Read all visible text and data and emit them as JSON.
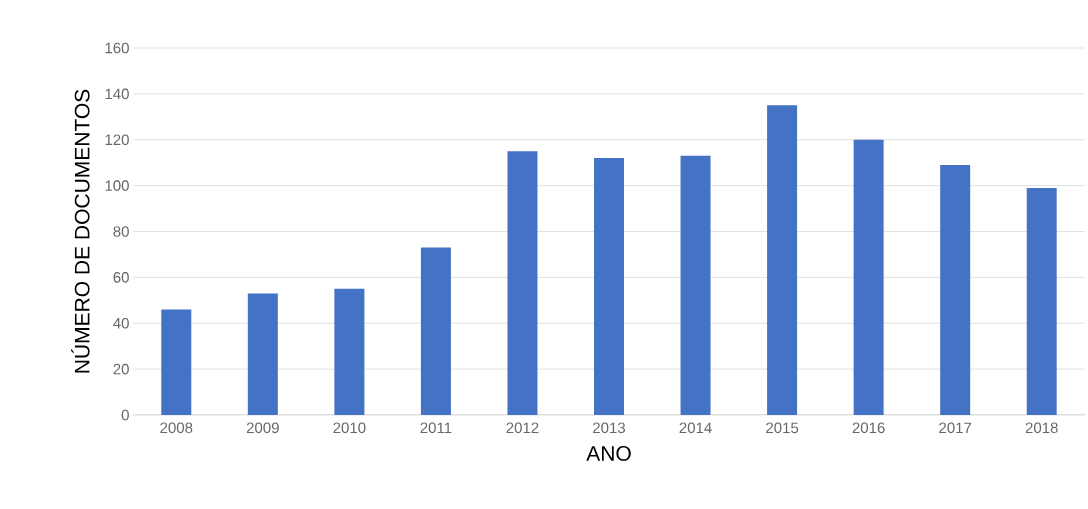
{
  "chart_data": {
    "type": "bar",
    "xlabel": "ANO",
    "ylabel": "NÚMERO DE DOCUMENTOS",
    "categories": [
      "2008",
      "2009",
      "2010",
      "2011",
      "2012",
      "2013",
      "2014",
      "2015",
      "2016",
      "2017",
      "2018"
    ],
    "values": [
      46,
      53,
      55,
      73,
      115,
      112,
      113,
      135,
      120,
      109,
      99
    ],
    "color": "#4472c4",
    "ylim": [
      0,
      160
    ],
    "yticks": [
      0,
      20,
      40,
      60,
      80,
      100,
      120,
      140,
      160
    ],
    "grid": "y"
  }
}
